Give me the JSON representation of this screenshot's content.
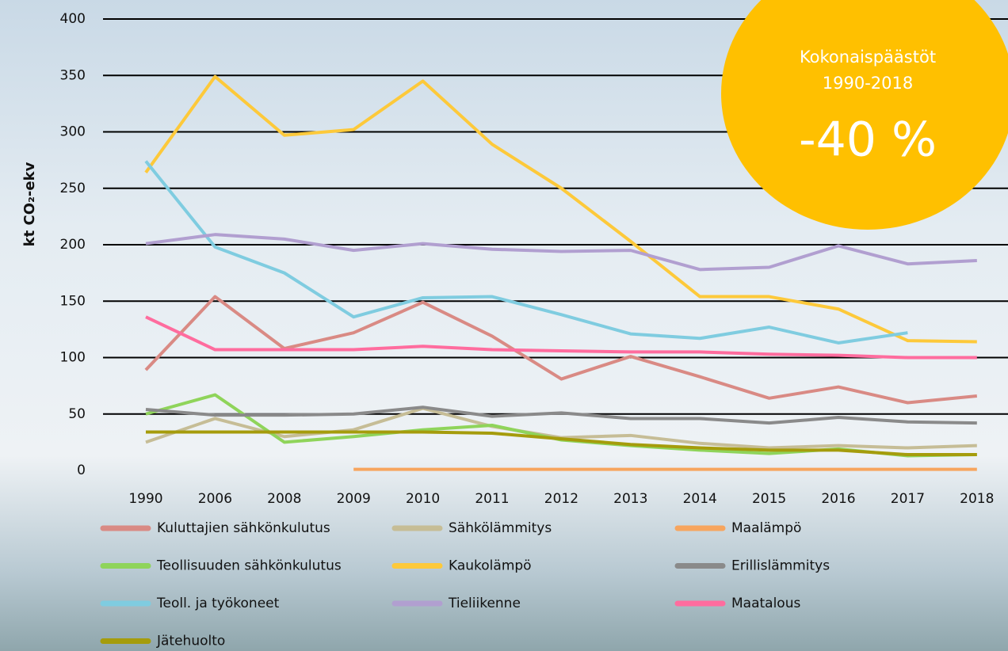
{
  "chart_data": {
    "type": "line",
    "ylabel": "kt CO₂-ekv",
    "categories": [
      "1990",
      "2006",
      "2008",
      "2009",
      "2010",
      "2011",
      "2012",
      "2013",
      "2014",
      "2015",
      "2016",
      "2017",
      "2018"
    ],
    "ylim": [
      0,
      400
    ],
    "yticks": [
      0,
      50,
      100,
      150,
      200,
      250,
      300,
      350,
      400
    ],
    "grid": true,
    "series": [
      {
        "name": "Kuluttajien sähkönkulutus",
        "color": "#d98a84",
        "values": [
          89,
          154,
          108,
          122,
          149,
          119,
          81,
          101,
          83,
          64,
          74,
          60,
          66
        ]
      },
      {
        "name": "Sähkölämmitys",
        "color": "#c6bd96",
        "values": [
          25,
          46,
          30,
          36,
          55,
          39,
          29,
          31,
          24,
          20,
          22,
          20,
          22
        ]
      },
      {
        "name": "Maalämpö",
        "color": "#f7a55e",
        "values": [
          null,
          null,
          null,
          1,
          1,
          1,
          1,
          1,
          1,
          1,
          1,
          1,
          1
        ]
      },
      {
        "name": "Teollisuuden sähkönkulutus",
        "color": "#8fd45a",
        "values": [
          50,
          67,
          25,
          30,
          36,
          40,
          27,
          22,
          18,
          15,
          19,
          13,
          14
        ]
      },
      {
        "name": "Kaukolämpö",
        "color": "#fdc93a",
        "values": [
          264,
          349,
          297,
          302,
          345,
          289,
          250,
          203,
          154,
          154,
          143,
          115,
          114
        ]
      },
      {
        "name": "Erillislämmitys",
        "color": "#8a8a8a",
        "values": [
          54,
          49,
          49,
          50,
          56,
          48,
          51,
          46,
          46,
          42,
          47,
          43,
          42
        ]
      },
      {
        "name": "Teoll. ja työkoneet",
        "color": "#7fcce0",
        "values": [
          274,
          198,
          175,
          136,
          153,
          154,
          138,
          121,
          117,
          127,
          113,
          122,
          null
        ]
      },
      {
        "name": "Tieliikenne",
        "color": "#b19fd0",
        "values": [
          201,
          209,
          205,
          195,
          201,
          196,
          194,
          195,
          178,
          180,
          199,
          183,
          186
        ]
      },
      {
        "name": "Maatalous",
        "color": "#ff6c9e",
        "values": [
          136,
          107,
          107,
          107,
          110,
          107,
          106,
          105,
          105,
          103,
          102,
          100,
          100
        ]
      },
      {
        "name": "Jätehuolto",
        "color": "#a59c0c",
        "values": [
          34,
          34,
          34,
          34,
          34,
          33,
          28,
          23,
          20,
          18,
          18,
          14,
          14
        ]
      }
    ],
    "annotation": {
      "color": "#ffc000",
      "lines": [
        "Kokonaispäästöt",
        "1990-2018",
        "-40 %"
      ]
    }
  }
}
